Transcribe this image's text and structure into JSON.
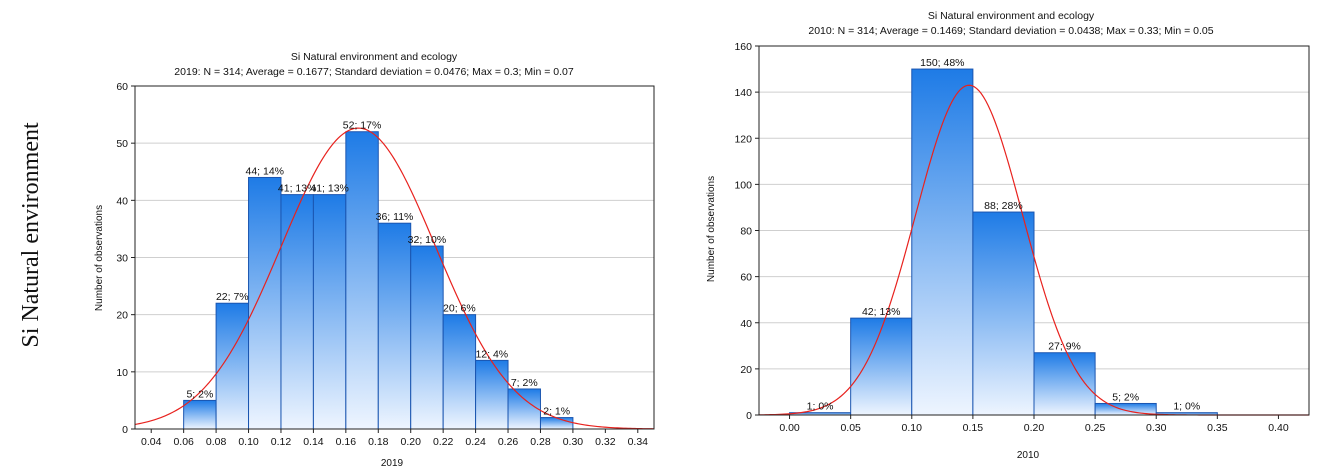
{
  "side_label": "Si Natural environment",
  "chart_data": [
    {
      "type": "bar",
      "subtype": "histogram",
      "title": "Si Natural environment and ecology",
      "subtitle": "2019: N = 314; Average = 0.1677; Standard deviation = 0.0476; Max = 0.3; Min = 0.07",
      "xlabel": "2019",
      "ylabel": "Number of observations",
      "xlim": [
        0.03,
        0.35
      ],
      "ylim": [
        0,
        60
      ],
      "xticks": [
        "0.04",
        "0.06",
        "0.08",
        "0.10",
        "0.12",
        "0.14",
        "0.16",
        "0.18",
        "0.20",
        "0.22",
        "0.24",
        "0.26",
        "0.28",
        "0.30",
        "0.32",
        "0.34"
      ],
      "yticks": [
        "0",
        "10",
        "20",
        "30",
        "40",
        "50",
        "60"
      ],
      "bin_width": 0.02,
      "bins": [
        {
          "x0": 0.06,
          "x1": 0.08,
          "value": 5,
          "label": "5; 2%"
        },
        {
          "x0": 0.08,
          "x1": 0.1,
          "value": 22,
          "label": "22; 7%"
        },
        {
          "x0": 0.1,
          "x1": 0.12,
          "value": 44,
          "label": "44; 14%"
        },
        {
          "x0": 0.12,
          "x1": 0.14,
          "value": 41,
          "label": "41; 13%"
        },
        {
          "x0": 0.14,
          "x1": 0.16,
          "value": 41,
          "label": "41; 13%"
        },
        {
          "x0": 0.16,
          "x1": 0.18,
          "value": 52,
          "label": "52; 17%"
        },
        {
          "x0": 0.18,
          "x1": 0.2,
          "value": 36,
          "label": "36; 11%"
        },
        {
          "x0": 0.2,
          "x1": 0.22,
          "value": 32,
          "label": "32; 10%"
        },
        {
          "x0": 0.22,
          "x1": 0.24,
          "value": 20,
          "label": "20; 6%"
        },
        {
          "x0": 0.24,
          "x1": 0.26,
          "value": 12,
          "label": "12; 4%"
        },
        {
          "x0": 0.26,
          "x1": 0.28,
          "value": 7,
          "label": "7; 2%"
        },
        {
          "x0": 0.28,
          "x1": 0.3,
          "value": 2,
          "label": "2; 1%"
        }
      ],
      "normal_curve": {
        "mean": 0.1677,
        "sd": 0.0476,
        "n": 314
      },
      "grid": true,
      "colors": {
        "bar_top": "#1e7be6",
        "bar_bottom": "#eef5ff",
        "bar_edge": "#1a55b0",
        "curve": "#e8221e"
      }
    },
    {
      "type": "bar",
      "subtype": "histogram",
      "title": "Si Natural environment and ecology",
      "subtitle": "2010:   N = 314; Average = 0.1469; Standard deviation = 0.0438; Max = 0.33; Min = 0.05",
      "xlabel": "2010",
      "ylabel": "Number of observations",
      "xlim": [
        -0.025,
        0.425
      ],
      "ylim": [
        0,
        160
      ],
      "xticks": [
        "0.00",
        "0.05",
        "0.10",
        "0.15",
        "0.20",
        "0.25",
        "0.30",
        "0.35",
        "0.40"
      ],
      "yticks": [
        "0",
        "20",
        "40",
        "60",
        "80",
        "100",
        "120",
        "140",
        "160"
      ],
      "bin_width": 0.05,
      "bins": [
        {
          "x0": 0.0,
          "x1": 0.05,
          "value": 1,
          "label": "1; 0%"
        },
        {
          "x0": 0.05,
          "x1": 0.1,
          "value": 42,
          "label": "42; 13%"
        },
        {
          "x0": 0.1,
          "x1": 0.15,
          "value": 150,
          "label": "150; 48%"
        },
        {
          "x0": 0.15,
          "x1": 0.2,
          "value": 88,
          "label": "88; 28%"
        },
        {
          "x0": 0.2,
          "x1": 0.25,
          "value": 27,
          "label": "27; 9%"
        },
        {
          "x0": 0.25,
          "x1": 0.3,
          "value": 5,
          "label": "5; 2%"
        },
        {
          "x0": 0.3,
          "x1": 0.35,
          "value": 1,
          "label": "1; 0%"
        }
      ],
      "normal_curve": {
        "mean": 0.1469,
        "sd": 0.0438,
        "n": 314
      },
      "grid": true,
      "colors": {
        "bar_top": "#1e7be6",
        "bar_bottom": "#eef5ff",
        "bar_edge": "#1a55b0",
        "curve": "#e8221e"
      }
    }
  ]
}
